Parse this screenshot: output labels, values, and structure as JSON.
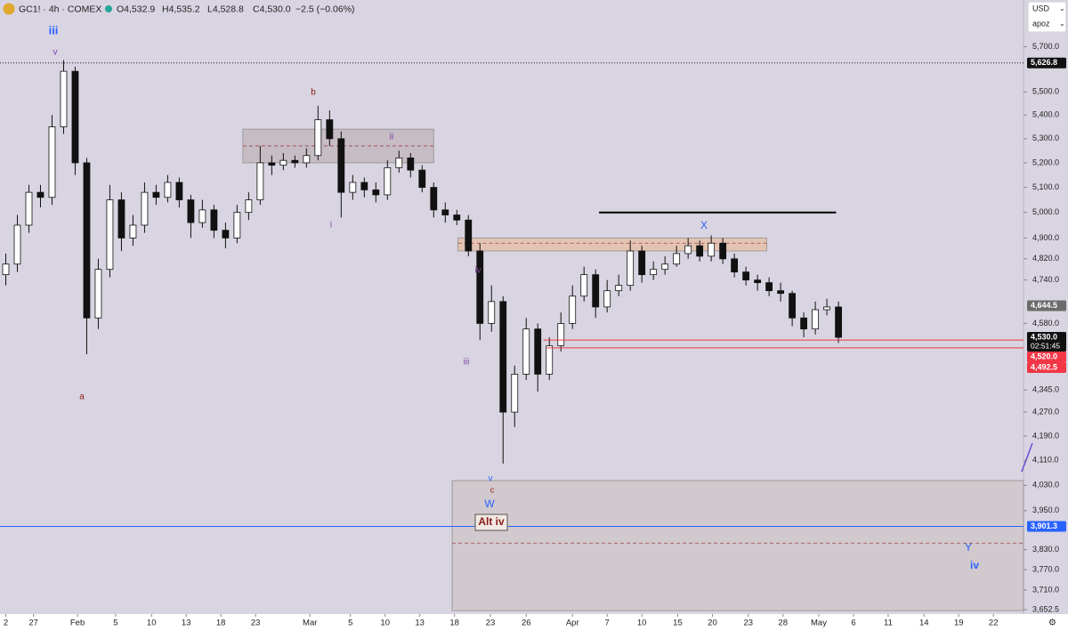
{
  "header": {
    "symbol": "GC1! · 4h · COMEX",
    "open": "O4,532.9",
    "high": "H4,535.2",
    "low": "L4,528.8",
    "close": "C4,530.0",
    "change": "−2.5 (−0.06%)",
    "currency": "USD",
    "user": "apoz"
  },
  "chart_data": {
    "type": "candlestick",
    "log_scale": true,
    "grid": false,
    "up_color": "#ffffff",
    "down_color": "#111111",
    "open": [
      4760,
      4800,
      4950,
      5080,
      5060,
      5350,
      5590,
      5200,
      4600,
      4780,
      5050,
      4900,
      4950,
      5080,
      5060,
      5120,
      5050,
      4960,
      5010,
      4930,
      4900,
      5000,
      5050,
      5200,
      5190,
      5210,
      5200,
      5230,
      5380,
      5300,
      5080,
      5120,
      5090,
      5070,
      5180,
      5220,
      5170,
      5100,
      5010,
      4990,
      4970,
      4850,
      4580,
      4660,
      4270,
      4400,
      4560,
      4400,
      4500,
      4580,
      4680,
      4760,
      4640,
      4700,
      4720,
      4850,
      4760,
      4780,
      4800,
      4840,
      4870,
      4830,
      4880,
      4820,
      4770,
      4740,
      4730,
      4700,
      4690,
      4600,
      4560,
      4630,
      4640
    ],
    "high": [
      4840,
      4990,
      5110,
      5110,
      5400,
      5640,
      5610,
      5220,
      4820,
      5110,
      5080,
      4990,
      5120,
      5110,
      5150,
      5140,
      5070,
      5050,
      5030,
      4960,
      5030,
      5080,
      5270,
      5230,
      5240,
      5230,
      5260,
      5440,
      5420,
      5330,
      5150,
      5140,
      5120,
      5210,
      5250,
      5240,
      5190,
      5120,
      5040,
      5010,
      4990,
      4880,
      4720,
      4680,
      4430,
      4600,
      4580,
      4530,
      4620,
      4720,
      4790,
      4780,
      4740,
      4760,
      4890,
      4870,
      4810,
      4830,
      4870,
      4900,
      4890,
      4910,
      4900,
      4840,
      4790,
      4760,
      4750,
      4730,
      4700,
      4620,
      4660,
      4670,
      4660
    ],
    "low": [
      4720,
      4770,
      4920,
      5020,
      5030,
      5320,
      5150,
      4470,
      4560,
      4750,
      4850,
      4870,
      4920,
      5030,
      5040,
      5020,
      4900,
      4940,
      4900,
      4860,
      4880,
      4970,
      5030,
      5150,
      5170,
      5180,
      5180,
      5210,
      5270,
      4980,
      5050,
      5060,
      5040,
      5050,
      5160,
      5140,
      5080,
      4980,
      4960,
      4950,
      4830,
      4520,
      4550,
      4100,
      4220,
      4380,
      4340,
      4380,
      4480,
      4560,
      4660,
      4600,
      4620,
      4680,
      4700,
      4730,
      4740,
      4760,
      4790,
      4820,
      4810,
      4810,
      4800,
      4750,
      4720,
      4700,
      4680,
      4660,
      4570,
      4530,
      4540,
      4610,
      4510
    ],
    "close": [
      4800,
      4950,
      5080,
      5060,
      5350,
      5590,
      5200,
      4600,
      4780,
      5050,
      4900,
      4950,
      5080,
      5060,
      5120,
      5050,
      4960,
      5010,
      4930,
      4900,
      5000,
      5050,
      5200,
      5190,
      5210,
      5200,
      5230,
      5380,
      5300,
      5080,
      5120,
      5090,
      5070,
      5180,
      5220,
      5170,
      5100,
      5010,
      4990,
      4970,
      4850,
      4580,
      4660,
      4270,
      4400,
      4560,
      4400,
      4500,
      4580,
      4680,
      4760,
      4640,
      4700,
      4720,
      4850,
      4760,
      4780,
      4800,
      4840,
      4870,
      4830,
      4880,
      4820,
      4770,
      4740,
      4730,
      4700,
      4690,
      4600,
      4560,
      4630,
      4640,
      4530
    ],
    "xlim": [
      -0.5,
      88
    ],
    "xticks": [
      {
        "value": 0,
        "label": "2"
      },
      {
        "value": 2.4,
        "label": "27"
      },
      {
        "value": 6.2,
        "label": "Feb"
      },
      {
        "value": 9.5,
        "label": "5"
      },
      {
        "value": 12.6,
        "label": "10"
      },
      {
        "value": 15.6,
        "label": "13"
      },
      {
        "value": 18.6,
        "label": "18"
      },
      {
        "value": 21.6,
        "label": "23"
      },
      {
        "value": 26.3,
        "label": "Mar"
      },
      {
        "value": 29.8,
        "label": "5"
      },
      {
        "value": 32.8,
        "label": "10"
      },
      {
        "value": 35.8,
        "label": "13"
      },
      {
        "value": 38.8,
        "label": "18"
      },
      {
        "value": 41.9,
        "label": "23"
      },
      {
        "value": 45,
        "label": "26"
      },
      {
        "value": 49,
        "label": "Apr"
      },
      {
        "value": 52,
        "label": "7"
      },
      {
        "value": 55,
        "label": "10"
      },
      {
        "value": 58.1,
        "label": "15"
      },
      {
        "value": 61.1,
        "label": "20"
      },
      {
        "value": 64.2,
        "label": "23"
      },
      {
        "value": 67.2,
        "label": "28"
      },
      {
        "value": 70.3,
        "label": "May"
      },
      {
        "value": 73.3,
        "label": "6"
      },
      {
        "value": 76.3,
        "label": "11"
      },
      {
        "value": 79.4,
        "label": "14"
      },
      {
        "value": 82.4,
        "label": "19"
      },
      {
        "value": 85.4,
        "label": "22"
      }
    ],
    "ylim": [
      3640,
      5750
    ],
    "yticks": [
      {
        "value": 5700,
        "label": "5,700.0"
      },
      {
        "value": 5500,
        "label": "5,500.0"
      },
      {
        "value": 5400,
        "label": "5,400.0"
      },
      {
        "value": 5300,
        "label": "5,300.0"
      },
      {
        "value": 5200,
        "label": "5,200.0"
      },
      {
        "value": 5100,
        "label": "5,100.0"
      },
      {
        "value": 5000,
        "label": "5,000.0"
      },
      {
        "value": 4900,
        "label": "4,900.0"
      },
      {
        "value": 4820,
        "label": "4,820.0"
      },
      {
        "value": 4740,
        "label": "4,740.0"
      },
      {
        "value": 4580,
        "label": "4,580.0"
      },
      {
        "value": 4345,
        "label": "4,345.0"
      },
      {
        "value": 4270,
        "label": "4,270.0"
      },
      {
        "value": 4190,
        "label": "4,190.0"
      },
      {
        "value": 4110,
        "label": "4,110.0"
      },
      {
        "value": 4030,
        "label": "4,030.0"
      },
      {
        "value": 3950,
        "label": "3,950.0"
      },
      {
        "value": 3830,
        "label": "3,830.0"
      },
      {
        "value": 3770,
        "label": "3,770.0"
      },
      {
        "value": 3710,
        "label": "3,710.0"
      },
      {
        "value": 3652.5,
        "label": "3,652.5"
      }
    ],
    "levels": [
      {
        "value": 5626.8,
        "label": "5,626.8",
        "color": "#111111",
        "line": "dotted"
      },
      {
        "value": 4644.5,
        "label": "4,644.5",
        "color": "#6b6b6b",
        "line": "none"
      },
      {
        "value": 4530,
        "label": "4,530.0",
        "color": "#111111",
        "line": "none"
      },
      {
        "value": 4520,
        "label": "4,520.0",
        "color": "#f23645",
        "line": "solid",
        "from": 46.5
      },
      {
        "value": 4492.5,
        "label": "4,492.5",
        "color": "#f23645",
        "line": "solid",
        "from": 46.8
      },
      {
        "value": 3901.3,
        "label": "3,901.3",
        "color": "#2962ff",
        "line": "solid"
      }
    ],
    "countdown": "02:51:45",
    "zones": [
      {
        "low": 5200,
        "high": 5340,
        "mid": 5270,
        "from": 20.5,
        "to": 37,
        "color": "#b0a0a0"
      },
      {
        "low": 4850,
        "high": 4900,
        "mid": 4880,
        "from": 39.1,
        "to": 65.8,
        "color": "#f0b27a"
      },
      {
        "low": 3650,
        "high": 4045,
        "mid": 3850,
        "from": 38.6,
        "to": 88,
        "color": "#c7bdb5"
      }
    ],
    "resistance": {
      "value": 5000,
      "from": 51.3,
      "to": 71.8
    },
    "annotations": [
      {
        "text": "iii",
        "color": "#2962ff"
      },
      {
        "text": "v",
        "color": "#7b3fa0"
      },
      {
        "text": "b",
        "color": "#8b1a1a"
      },
      {
        "text": "ii",
        "color": "#7b3fa0"
      },
      {
        "text": "i",
        "color": "#7b3fa0"
      },
      {
        "text": "a",
        "color": "#8b1a1a"
      },
      {
        "text": "iv",
        "color": "#7b3fa0"
      },
      {
        "text": "iii",
        "color": "#7b3fa0"
      },
      {
        "text": "v",
        "color": "#2962ff"
      },
      {
        "text": "c",
        "color": "#8b1a1a"
      },
      {
        "text": "W",
        "color": "#2962ff"
      },
      {
        "text": "Alt iv",
        "color": "#8b1a1a"
      },
      {
        "text": "X",
        "color": "#2962ff"
      },
      {
        "text": "Y",
        "color": "#2962ff"
      },
      {
        "text": "iv",
        "color": "#2962ff"
      }
    ]
  }
}
